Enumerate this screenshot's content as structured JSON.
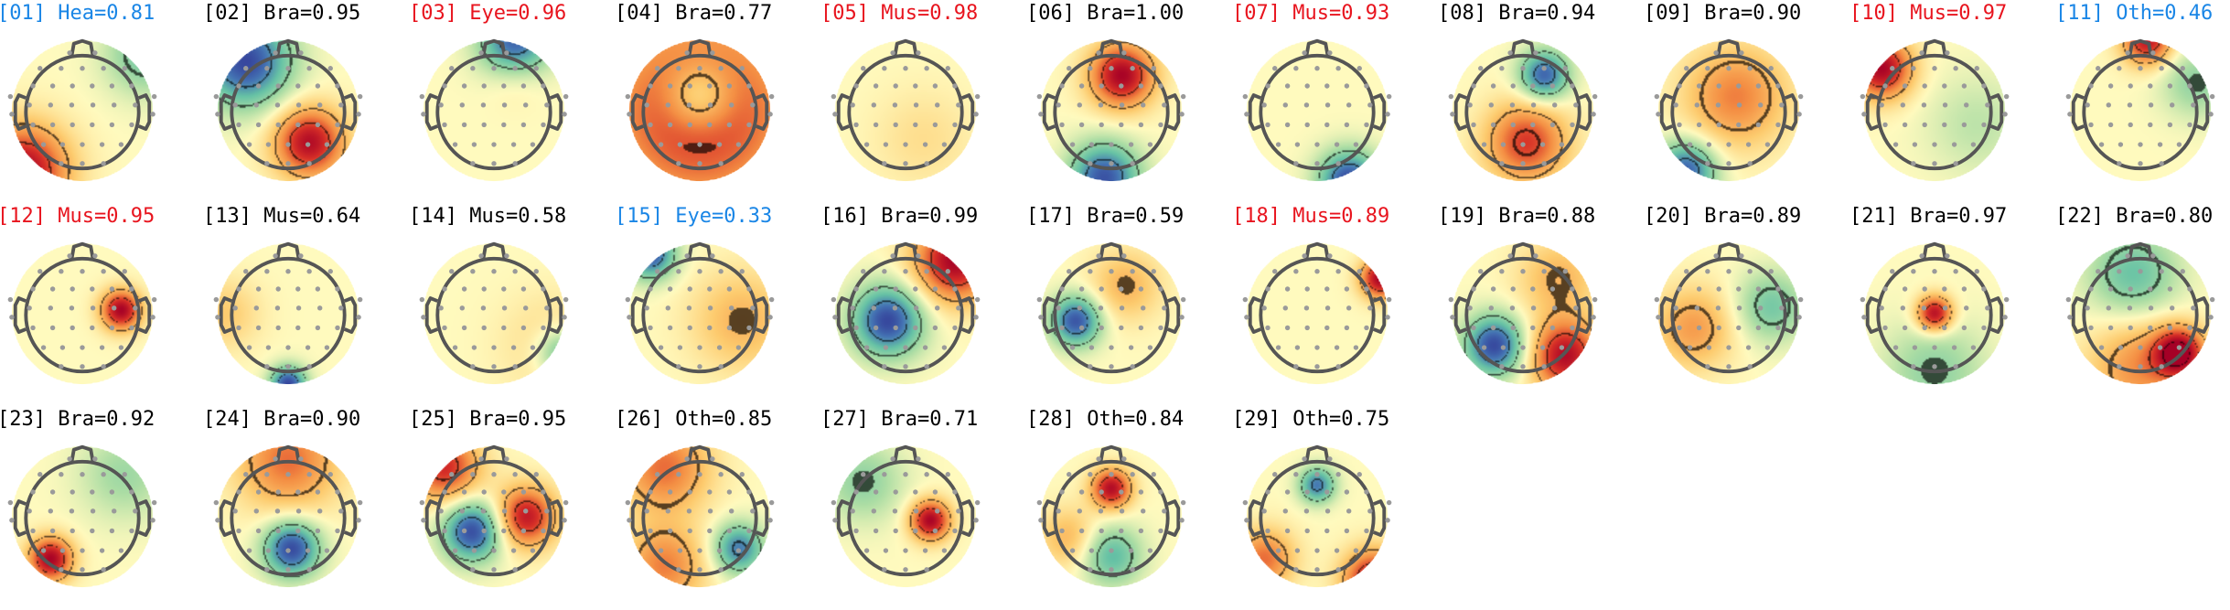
{
  "figure": {
    "colors": {
      "default_label": "#000000",
      "muscle_eye_label": "#e8141e",
      "heart_other_label": "#1a86e6",
      "electrode": "#9a9a9a",
      "head_outline": "#555555",
      "contour": "#3a3a3a"
    },
    "components": [
      {
        "index": "01",
        "label": "[01] Hea=0.81",
        "color_class": "blue"
      },
      {
        "index": "02",
        "label": "[02] Bra=0.95",
        "color_class": "black"
      },
      {
        "index": "03",
        "label": "[03] Eye=0.96",
        "color_class": "red"
      },
      {
        "index": "04",
        "label": "[04] Bra=0.77",
        "color_class": "black"
      },
      {
        "index": "05",
        "label": "[05] Mus=0.98",
        "color_class": "red"
      },
      {
        "index": "06",
        "label": "[06] Bra=1.00",
        "color_class": "black"
      },
      {
        "index": "07",
        "label": "[07] Mus=0.93",
        "color_class": "red"
      },
      {
        "index": "08",
        "label": "[08] Bra=0.94",
        "color_class": "black"
      },
      {
        "index": "09",
        "label": "[09] Bra=0.90",
        "color_class": "black"
      },
      {
        "index": "10",
        "label": "[10] Mus=0.97",
        "color_class": "red"
      },
      {
        "index": "11",
        "label": "[11] Oth=0.46",
        "color_class": "blue"
      },
      {
        "index": "12",
        "label": "[12] Mus=0.95",
        "color_class": "red"
      },
      {
        "index": "13",
        "label": "[13] Mus=0.64",
        "color_class": "black"
      },
      {
        "index": "14",
        "label": "[14] Mus=0.58",
        "color_class": "black"
      },
      {
        "index": "15",
        "label": "[15] Eye=0.33",
        "color_class": "blue"
      },
      {
        "index": "16",
        "label": "[16] Bra=0.99",
        "color_class": "black"
      },
      {
        "index": "17",
        "label": "[17] Bra=0.59",
        "color_class": "black"
      },
      {
        "index": "18",
        "label": "[18] Mus=0.89",
        "color_class": "red"
      },
      {
        "index": "19",
        "label": "[19] Bra=0.88",
        "color_class": "black"
      },
      {
        "index": "20",
        "label": "[20] Bra=0.89",
        "color_class": "black"
      },
      {
        "index": "21",
        "label": "[21] Bra=0.97",
        "color_class": "black"
      },
      {
        "index": "22",
        "label": "[22] Bra=0.80",
        "color_class": "black"
      },
      {
        "index": "23",
        "label": "[23] Bra=0.92",
        "color_class": "black"
      },
      {
        "index": "24",
        "label": "[24] Bra=0.90",
        "color_class": "black"
      },
      {
        "index": "25",
        "label": "[25] Bra=0.95",
        "color_class": "black"
      },
      {
        "index": "26",
        "label": "[26] Oth=0.85",
        "color_class": "black"
      },
      {
        "index": "27",
        "label": "[27] Bra=0.71",
        "color_class": "black"
      },
      {
        "index": "28",
        "label": "[28] Oth=0.84",
        "color_class": "black"
      },
      {
        "index": "29",
        "label": "[29] Oth=0.75",
        "color_class": "black"
      }
    ]
  }
}
